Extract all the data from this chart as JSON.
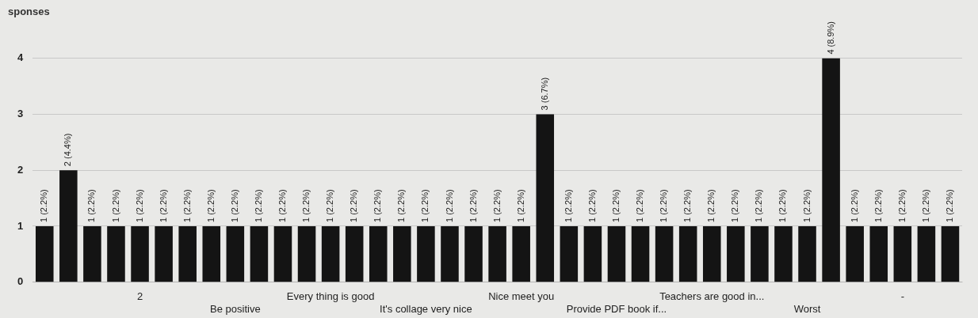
{
  "chart_data": {
    "type": "bar",
    "title": "sponses",
    "categories": [
      null,
      null,
      null,
      null,
      "2",
      null,
      null,
      null,
      "Be positive",
      null,
      null,
      null,
      "Every thing is good",
      null,
      null,
      null,
      "It's collage very nice",
      null,
      null,
      null,
      "Nice meet you",
      null,
      null,
      null,
      "Provide PDF book if...",
      null,
      null,
      null,
      "Teachers are good in...",
      null,
      null,
      null,
      "Worst",
      null,
      null,
      null,
      "-",
      null,
      null
    ],
    "series": [
      {
        "color": "#141414",
        "values": [
          1,
          2,
          1,
          1,
          1,
          1,
          1,
          1,
          1,
          1,
          1,
          1,
          1,
          1,
          1,
          1,
          1,
          1,
          1,
          1,
          1,
          3,
          1,
          1,
          1,
          1,
          1,
          1,
          1,
          1,
          1,
          1,
          1,
          4,
          1,
          1,
          1,
          1,
          1
        ],
        "value_labels": [
          "1 (2.2%)",
          "2 (4.4%)",
          "1 (2.2%)",
          "1 (2.2%)",
          "1 (2.2%)",
          "1 (2.2%)",
          "1 (2.2%)",
          "1 (2.2%)",
          "1 (2.2%)",
          "1 (2.2%)",
          "1 (2.2%)",
          "1 (2.2%)",
          "1 (2.2%)",
          "1 (2.2%)",
          "1 (2.2%)",
          "1 (2.2%)",
          "1 (2.2%)",
          "1 (2.2%)",
          "1 (2.2%)",
          "1 (2.2%)",
          "1 (2.2%)",
          "3 (6.7%)",
          "1 (2.2%)",
          "1 (2.2%)",
          "1 (2.2%)",
          "1 (2.2%)",
          "1 (2.2%)",
          "1 (2.2%)",
          "1 (2.2%)",
          "1 (2.2%)",
          "1 (2.2%)",
          "1 (2.2%)",
          "1 (2.2%)",
          "4 (8.9%)",
          "1 (2.2%)",
          "1 (2.2%)",
          "1 (2.2%)",
          "1 (2.2%)",
          "1 (2.2%)"
        ]
      }
    ],
    "ylim": [
      0,
      4
    ],
    "yticks": [
      0,
      1,
      2,
      3,
      4
    ],
    "grid": "y",
    "legend": false
  }
}
